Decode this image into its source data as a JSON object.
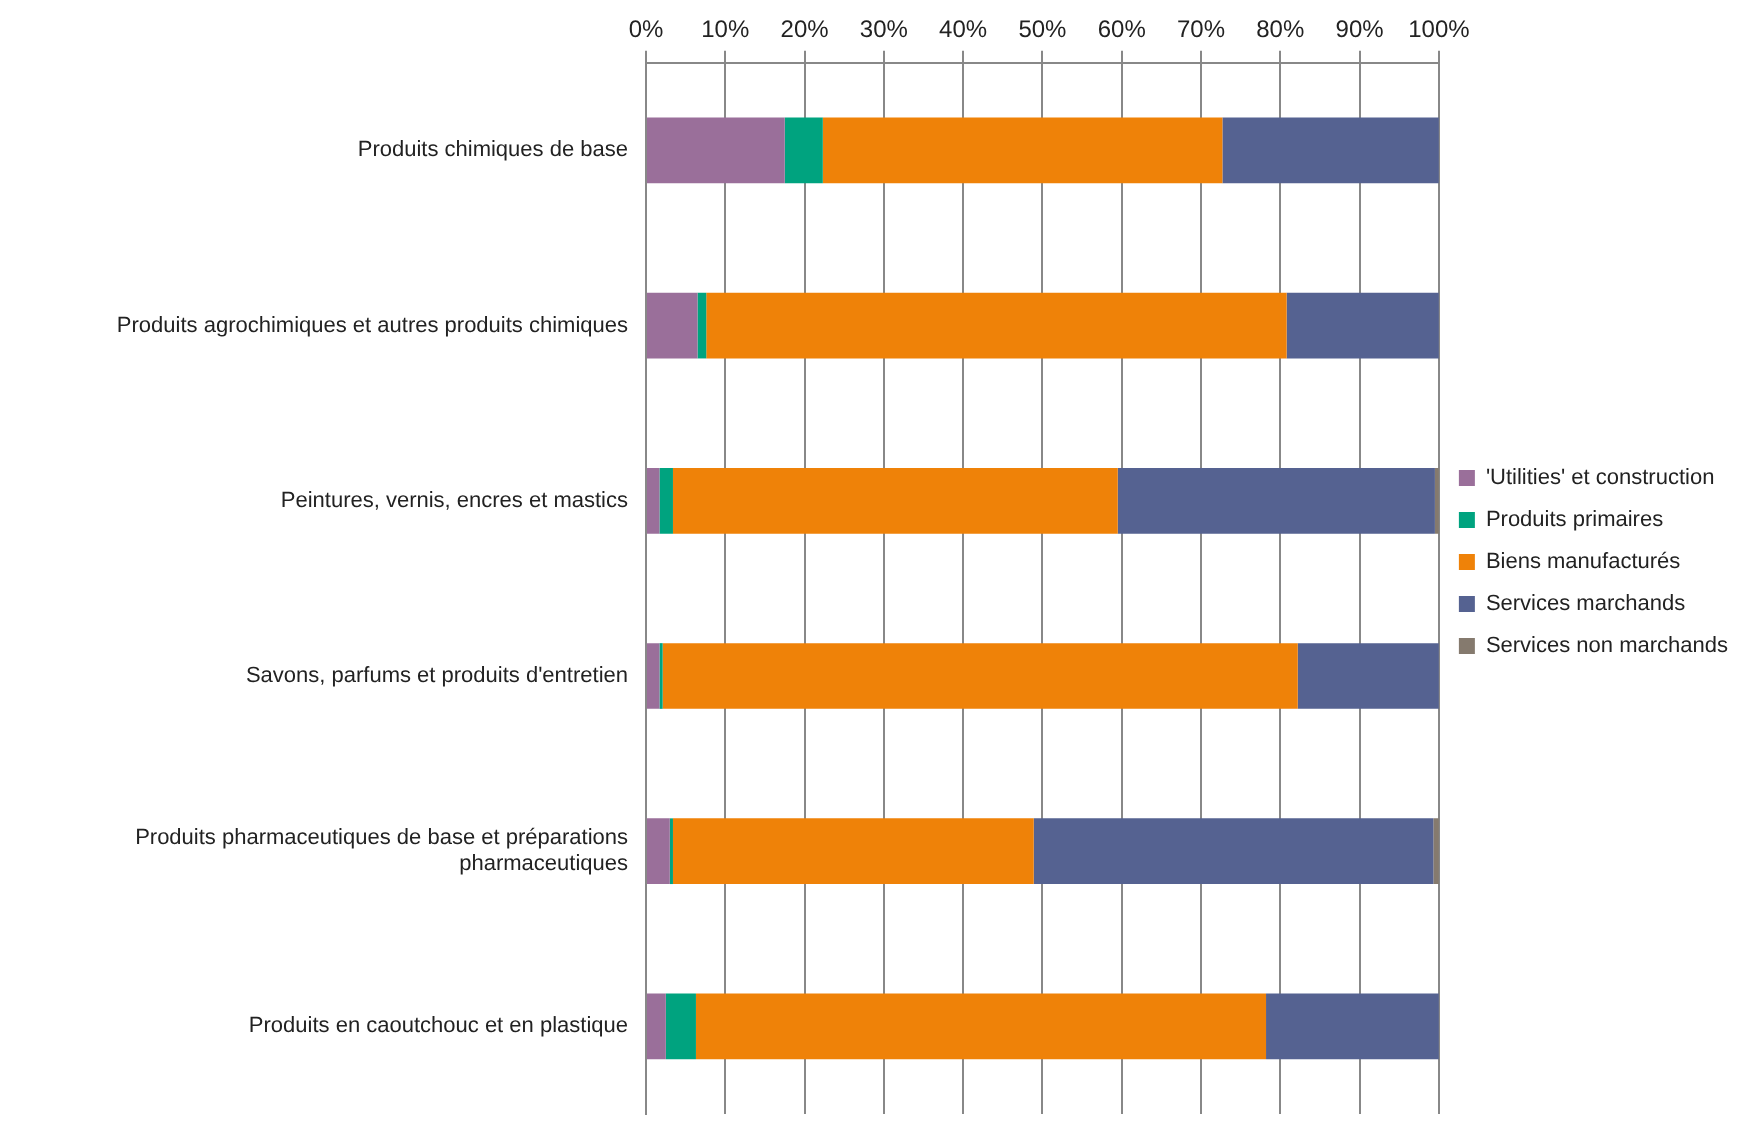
{
  "chart_data": {
    "type": "bar",
    "orientation": "horizontal",
    "stacked": true,
    "categories": [
      "Produits chimiques de base",
      "Produits agrochimiques et autres produits chimiques",
      "Peintures, vernis, encres et mastics",
      "Savons, parfums et produits d'entretien",
      "Produits pharmaceutiques de base et préparations pharmaceutiques",
      "Produits en caoutchouc et en plastique"
    ],
    "series": [
      {
        "name": "'Utilities' et construction",
        "color": "#9a6f9a",
        "values": [
          17.5,
          6.5,
          1.7,
          1.7,
          3.0,
          2.5
        ]
      },
      {
        "name": "Produits primaires",
        "color": "#00a37f",
        "values": [
          4.8,
          1.1,
          1.7,
          0.4,
          0.4,
          3.8
        ]
      },
      {
        "name": "Biens manufacturés",
        "color": "#ef8208",
        "values": [
          50.4,
          73.2,
          56.1,
          80.1,
          45.5,
          71.9
        ]
      },
      {
        "name": "Services marchands",
        "color": "#556291",
        "values": [
          27.3,
          19.2,
          40.0,
          17.8,
          50.4,
          21.8
        ]
      },
      {
        "name": "Services non marchands",
        "color": "#857a6e",
        "values": [
          0,
          0,
          0.5,
          null,
          0.7,
          null
        ]
      }
    ],
    "xlim": [
      0,
      100
    ],
    "xticks": [
      {
        "value": 0,
        "label": "0%"
      },
      {
        "value": 10,
        "label": "10%"
      },
      {
        "value": 20,
        "label": "20%"
      },
      {
        "value": 30,
        "label": "30%"
      },
      {
        "value": 40,
        "label": "40%"
      },
      {
        "value": 50,
        "label": "50%"
      },
      {
        "value": 60,
        "label": "60%"
      },
      {
        "value": 70,
        "label": "70%"
      },
      {
        "value": 80,
        "label": "80%"
      },
      {
        "value": 90,
        "label": "90%"
      },
      {
        "value": 100,
        "label": "100%"
      }
    ],
    "grid": "x",
    "legend": "right"
  }
}
